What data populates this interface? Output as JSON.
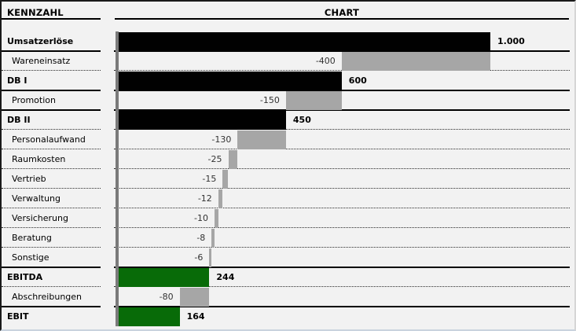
{
  "header": {
    "left_title": "KENNZAHL",
    "chart_title": "CHART"
  },
  "colors": {
    "background": "#f2f2f2",
    "bar_black": "#010101",
    "bar_gray": "#a6a6a6",
    "bar_green": "#086b08",
    "axis_line": "#7a7a7a",
    "separator": "#000000",
    "positive_label": "#000000",
    "negative_label": "#333333"
  },
  "chart_data": {
    "type": "bar",
    "subtype": "horizontal-waterfall",
    "title": "CHART",
    "category_column_title": "KENNZAHL",
    "value_axis": {
      "min": 0,
      "max_labeled_value": 1000,
      "gridlines": false
    },
    "legend": "none",
    "rows": [
      {
        "label": "Umsatzerlöse",
        "value": 1000,
        "value_label": "1.000",
        "start": 0,
        "end": 1000,
        "color": "black",
        "bold": true,
        "label_side": "right",
        "separator_below": "solid"
      },
      {
        "label": "Wareneinsatz",
        "value": -400,
        "value_label": "-400",
        "start": 600,
        "end": 1000,
        "color": "gray",
        "bold": false,
        "label_side": "left",
        "separator_below": "dotted"
      },
      {
        "label": "DB I",
        "value": 600,
        "value_label": "600",
        "start": 0,
        "end": 600,
        "color": "black",
        "bold": true,
        "label_side": "right",
        "separator_below": "solid"
      },
      {
        "label": "Promotion",
        "value": -150,
        "value_label": "-150",
        "start": 450,
        "end": 600,
        "color": "gray",
        "bold": false,
        "label_side": "left",
        "separator_below": "solid"
      },
      {
        "label": "DB II",
        "value": 450,
        "value_label": "450",
        "start": 0,
        "end": 450,
        "color": "black",
        "bold": true,
        "label_side": "right",
        "separator_below": "dotted"
      },
      {
        "label": "Personalaufwand",
        "value": -130,
        "value_label": "-130",
        "start": 320,
        "end": 450,
        "color": "gray",
        "bold": false,
        "label_side": "left",
        "separator_below": "dotted"
      },
      {
        "label": "Raumkosten",
        "value": -25,
        "value_label": "-25",
        "start": 295,
        "end": 320,
        "color": "gray",
        "bold": false,
        "label_side": "left",
        "separator_below": "dotted"
      },
      {
        "label": "Vertrieb",
        "value": -15,
        "value_label": "-15",
        "start": 280,
        "end": 295,
        "color": "gray",
        "bold": false,
        "label_side": "left",
        "separator_below": "dotted"
      },
      {
        "label": "Verwaltung",
        "value": -12,
        "value_label": "-12",
        "start": 268,
        "end": 280,
        "color": "gray",
        "bold": false,
        "label_side": "left",
        "separator_below": "dotted"
      },
      {
        "label": "Versicherung",
        "value": -10,
        "value_label": "-10",
        "start": 258,
        "end": 268,
        "color": "gray",
        "bold": false,
        "label_side": "left",
        "separator_below": "dotted"
      },
      {
        "label": "Beratung",
        "value": -8,
        "value_label": "-8",
        "start": 250,
        "end": 258,
        "color": "gray",
        "bold": false,
        "label_side": "left",
        "separator_below": "dotted"
      },
      {
        "label": "Sonstige",
        "value": -6,
        "value_label": "-6",
        "start": 244,
        "end": 250,
        "color": "gray",
        "bold": false,
        "label_side": "left",
        "separator_below": "solid"
      },
      {
        "label": "EBITDA",
        "value": 244,
        "value_label": "244",
        "start": 0,
        "end": 244,
        "color": "green",
        "bold": true,
        "label_side": "right",
        "separator_below": "dotted"
      },
      {
        "label": "Abschreibungen",
        "value": -80,
        "value_label": "-80",
        "start": 164,
        "end": 244,
        "color": "gray",
        "bold": false,
        "label_side": "left",
        "separator_below": "solid"
      },
      {
        "label": "EBIT",
        "value": 164,
        "value_label": "164",
        "start": 0,
        "end": 164,
        "color": "green",
        "bold": true,
        "label_side": "right",
        "separator_below": "none"
      }
    ]
  }
}
